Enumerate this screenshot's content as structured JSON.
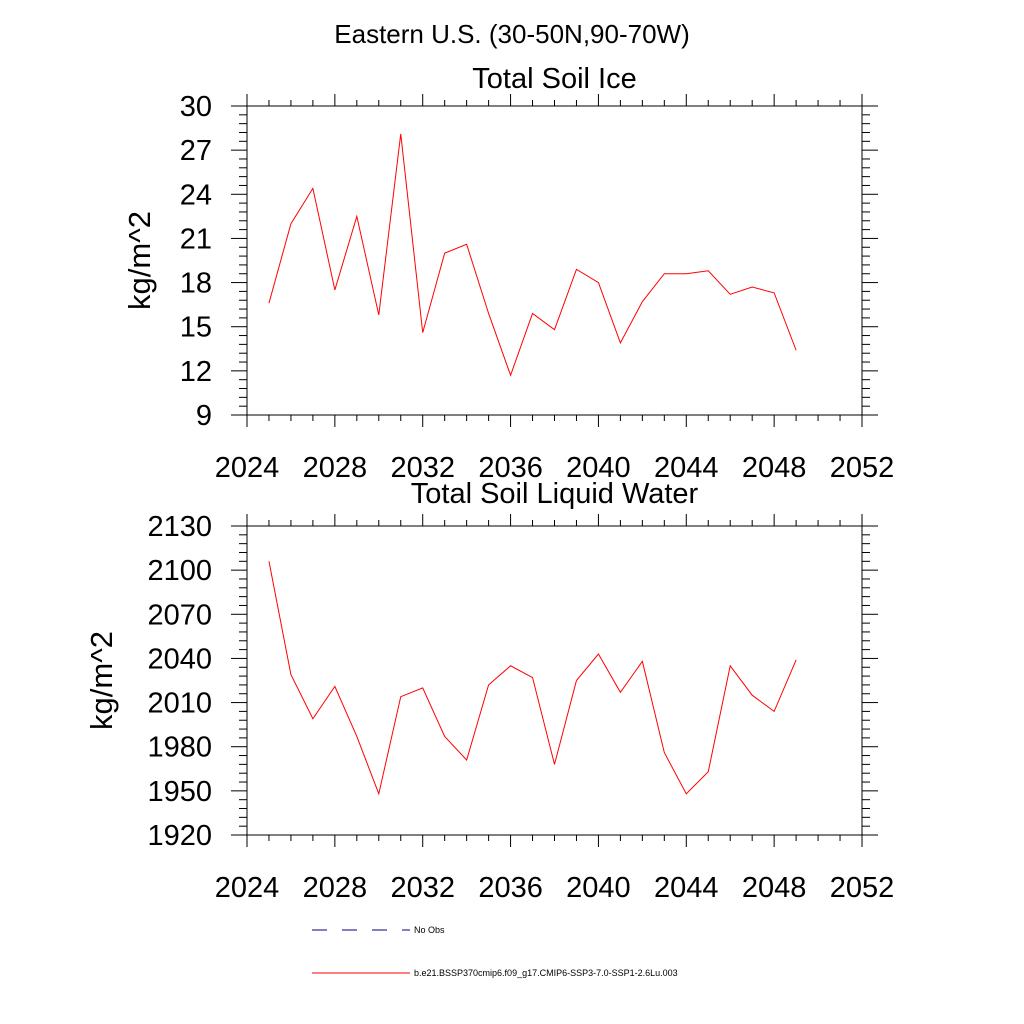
{
  "suptitle": "Eastern U.S. (30-50N,90-70W)",
  "chart_data": [
    {
      "type": "line",
      "title": "Total Soil Ice",
      "xlabel": "",
      "ylabel": "kg/m^2",
      "xlim": [
        2024,
        2052
      ],
      "ylim": [
        9,
        30
      ],
      "xticks": [
        2024,
        2028,
        2032,
        2036,
        2040,
        2044,
        2048,
        2052
      ],
      "yticks": [
        9,
        12,
        15,
        18,
        21,
        24,
        27,
        30
      ],
      "x": [
        2025,
        2026,
        2027,
        2028,
        2029,
        2030,
        2031,
        2032,
        2033,
        2034,
        2035,
        2036,
        2037,
        2038,
        2039,
        2040,
        2041,
        2042,
        2043,
        2044,
        2045,
        2046,
        2047,
        2048,
        2049
      ],
      "series": [
        {
          "color": "#ff0000",
          "values": [
            16.6,
            22.0,
            24.4,
            17.5,
            22.5,
            15.8,
            28.1,
            14.6,
            20.0,
            20.6,
            15.9,
            11.7,
            15.9,
            14.8,
            18.9,
            18.0,
            13.9,
            16.7,
            18.6,
            18.6,
            18.8,
            17.2,
            17.7,
            17.3,
            13.4
          ]
        }
      ]
    },
    {
      "type": "line",
      "title": "Total Soil Liquid Water",
      "xlabel": "",
      "ylabel": "kg/m^2",
      "xlim": [
        2024,
        2052
      ],
      "ylim": [
        1920,
        2130
      ],
      "xticks": [
        2024,
        2028,
        2032,
        2036,
        2040,
        2044,
        2048,
        2052
      ],
      "yticks": [
        1920,
        1950,
        1980,
        2010,
        2040,
        2070,
        2100,
        2130
      ],
      "x": [
        2025,
        2026,
        2027,
        2028,
        2029,
        2030,
        2031,
        2032,
        2033,
        2034,
        2035,
        2036,
        2037,
        2038,
        2039,
        2040,
        2041,
        2042,
        2043,
        2044,
        2045,
        2046,
        2047,
        2048,
        2049
      ],
      "series": [
        {
          "color": "#ff0000",
          "values": [
            2106,
            2029,
            1999,
            2021,
            1987,
            1948,
            2014,
            2020,
            1987,
            1971,
            2022,
            2035,
            2027,
            1968,
            2025,
            2043,
            2017,
            2038,
            1976,
            1948,
            1963,
            2035,
            2015,
            2004,
            2039
          ]
        }
      ]
    }
  ],
  "legend": [
    {
      "label": "No Obs",
      "color": "#000080",
      "style": "dashed"
    },
    {
      "label": "b.e21.BSSP370cmip6.f09_g17.CMIP6-SSP3-7.0-SSP1-2.6Lu.003",
      "color": "#ff0000",
      "style": "solid"
    }
  ]
}
